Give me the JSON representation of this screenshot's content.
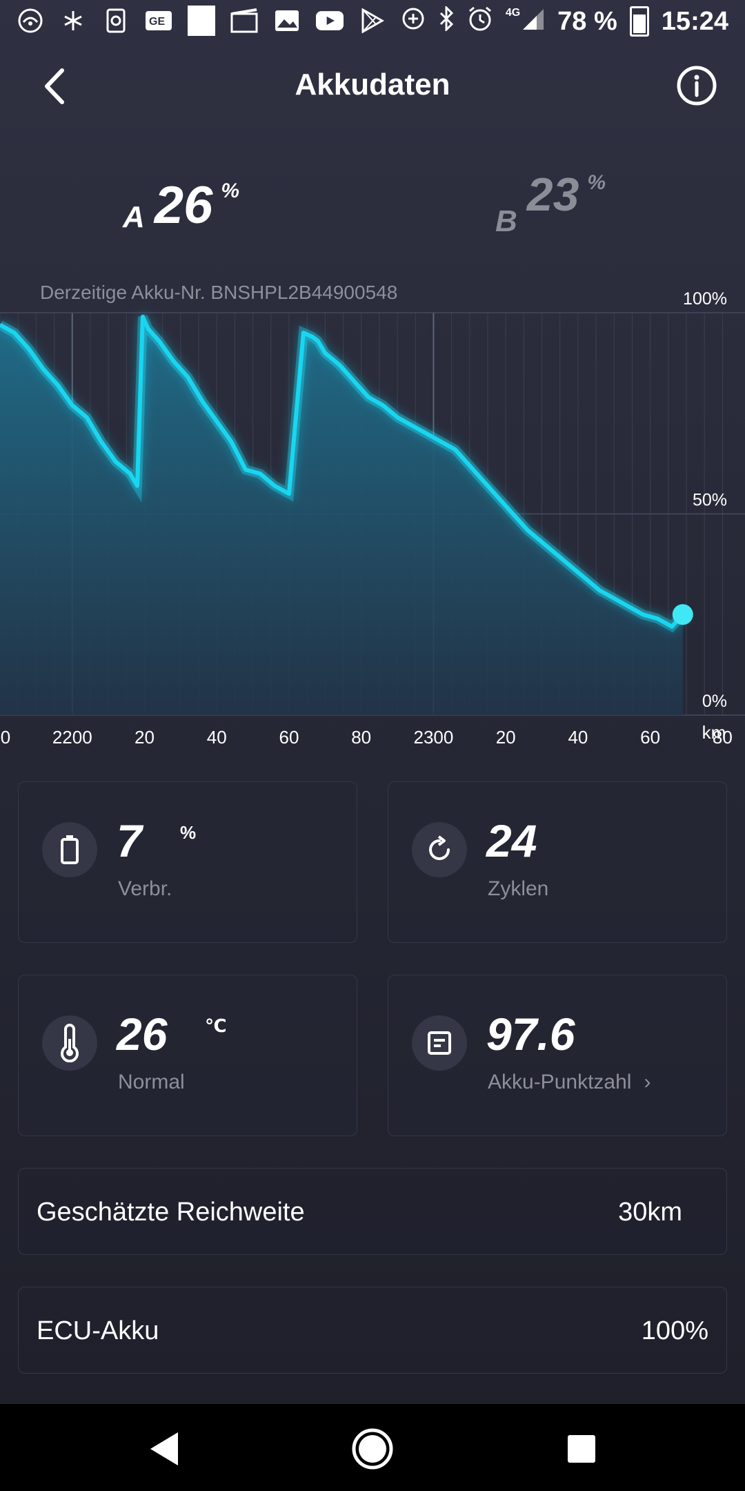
{
  "status_bar": {
    "battery_percent": "78 %",
    "time": "15:24",
    "network": "4G",
    "icons": [
      "wifi-globe-icon",
      "fan-icon",
      "sync-file-icon",
      "gb-card-icon",
      "blank-square-icon",
      "clapper-icon",
      "image-icon",
      "youtube-icon",
      "play-store-icon",
      "data-saver-icon",
      "bluetooth-icon",
      "alarm-icon",
      "signal-icon",
      "battery-icon"
    ]
  },
  "header": {
    "title": "Akkudaten",
    "back_icon": "chevron-left-icon",
    "info_icon": "info-circle-icon"
  },
  "packs": {
    "a": {
      "letter": "A",
      "value": "26",
      "unit": "%"
    },
    "b": {
      "letter": "B",
      "value": "23",
      "unit": "%"
    }
  },
  "serial_text": "Derzeitige Akku-Nr. BNSHPL2B44900548",
  "chart_data": {
    "type": "area",
    "xlabel": "km",
    "ylabel": "",
    "y_tick_labels": [
      "100%",
      "50%",
      "0%"
    ],
    "x_tick_labels": [
      "0",
      "2200",
      "20",
      "40",
      "60",
      "80",
      "2300",
      "20",
      "40",
      "60",
      "80"
    ],
    "xlim": [
      2180,
      2382
    ],
    "ylim": [
      0,
      100
    ],
    "accent_color": "#19d6f0",
    "series": [
      {
        "x": [
          2180,
          2184,
          2188,
          2192,
          2196,
          2200,
          2204,
          2208,
          2212,
          2216,
          2218,
          2219.5,
          2221,
          2224,
          2228,
          2232,
          2236,
          2240,
          2244,
          2248,
          2252,
          2256,
          2260,
          2264,
          2266.5,
          2268,
          2270,
          2274,
          2278,
          2282,
          2286,
          2290,
          2294,
          2298,
          2302,
          2306,
          2310,
          2314,
          2318,
          2322,
          2326,
          2330,
          2334,
          2338,
          2342,
          2346,
          2350,
          2354,
          2358,
          2362,
          2366,
          2369
        ],
        "y": [
          97,
          95,
          91,
          86,
          82,
          77,
          74,
          68,
          63,
          60,
          57,
          99,
          96,
          93,
          88,
          84,
          78,
          73,
          68,
          61,
          60,
          57,
          55,
          95,
          94,
          93,
          90,
          87,
          83,
          79,
          77,
          74,
          72,
          70,
          68,
          66,
          62,
          58,
          54,
          50,
          46,
          43,
          40,
          37,
          34,
          31,
          29,
          27,
          25,
          24,
          22,
          25
        ]
      }
    ],
    "current_point": {
      "x": 2369,
      "y": 25
    }
  },
  "stats": {
    "consumption": {
      "value": "7",
      "unit": "%",
      "label": "Verbr.",
      "icon": "battery-icon"
    },
    "cycles": {
      "value": "24",
      "label": "Zyklen",
      "icon": "refresh-icon"
    },
    "temperature": {
      "value": "26",
      "unit": "℃",
      "label": "Normal",
      "icon": "thermometer-icon"
    },
    "score": {
      "value": "97.6",
      "label": "Akku-Punktzahl",
      "chevron": "›",
      "icon": "document-icon"
    }
  },
  "rows": {
    "range": {
      "label": "Geschätzte Reichweite",
      "value": "30km"
    },
    "ecu": {
      "label": "ECU-Akku",
      "value": "100%"
    }
  },
  "nav": {
    "back_icon": "triangle-back-icon",
    "home_icon": "circle-home-icon",
    "recents_icon": "square-recents-icon"
  }
}
